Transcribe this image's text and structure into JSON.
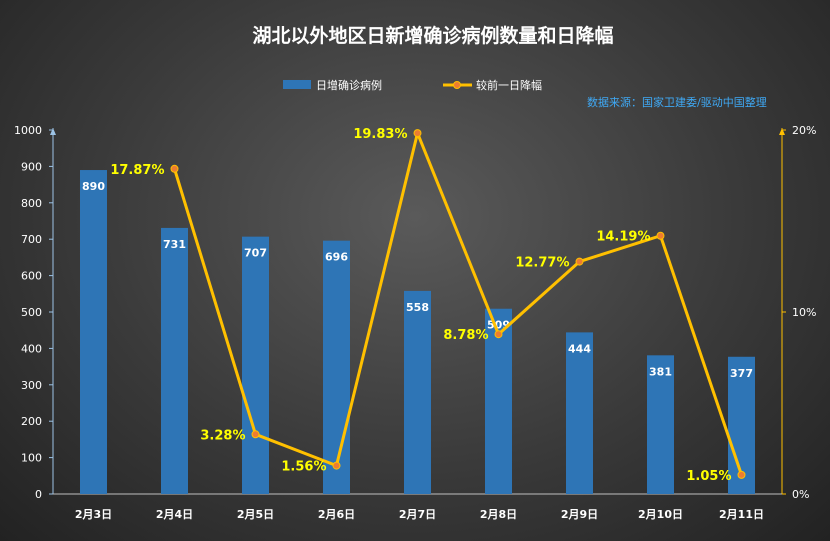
{
  "chart_data": {
    "type": "bar",
    "title": "湖北以外地区日新增确诊病例数量和日降幅",
    "source": "数据来源：国家卫建委/驱动中国整理",
    "categories": [
      "2月3日",
      "2月4日",
      "2月5日",
      "2月6日",
      "2月7日",
      "2月8日",
      "2月9日",
      "2月10日",
      "2月11日"
    ],
    "series": [
      {
        "name": "日增确诊病例",
        "type": "bar",
        "axis": "left",
        "color": "#2e75b6",
        "values": [
          890,
          731,
          707,
          696,
          558,
          509,
          444,
          381,
          377
        ],
        "labels": [
          "890",
          "731",
          "707",
          "696",
          "558",
          "509",
          "444",
          "381",
          "377"
        ]
      },
      {
        "name": "较前一日降幅",
        "type": "line",
        "axis": "right",
        "color": "#ffc000",
        "values": [
          null,
          17.87,
          3.28,
          1.56,
          19.83,
          8.78,
          12.77,
          14.19,
          1.05
        ],
        "labels": [
          "",
          "17.87%",
          "3.28%",
          "1.56%",
          "19.83%",
          "8.78%",
          "12.77%",
          "14.19%",
          "1.05%"
        ]
      }
    ],
    "y_left": {
      "min": 0,
      "max": 1000,
      "ticks": [
        "0",
        "100",
        "200",
        "300",
        "400",
        "500",
        "600",
        "700",
        "800",
        "900",
        "1000"
      ]
    },
    "y_right": {
      "min": 0,
      "max": 20,
      "ticks": [
        "0%",
        "10%",
        "20%"
      ]
    },
    "legend_position": "top-center",
    "colors": {
      "bar": "#2e75b6",
      "line": "#ffc000",
      "marker": "#ed7d31",
      "line_label": "#ffff00",
      "source_text": "#3fa9f5",
      "axis_text": "#ffffff"
    }
  }
}
